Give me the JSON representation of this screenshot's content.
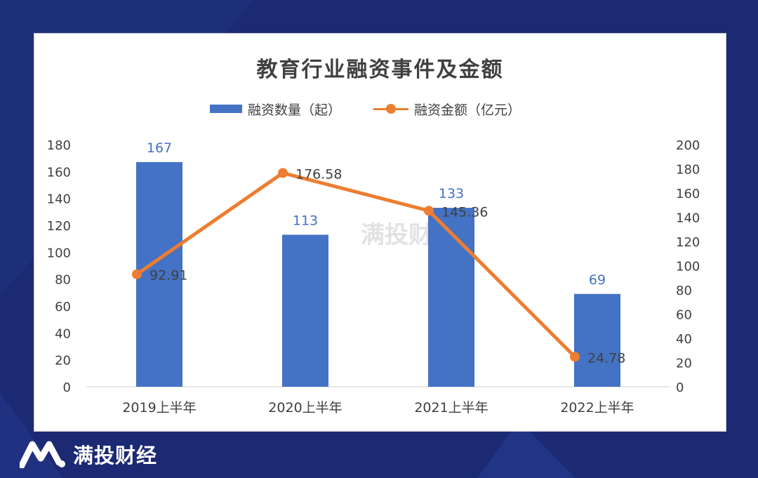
{
  "brand": {
    "name": "满投财经",
    "watermark": "满投财经"
  },
  "colors": {
    "background": "#1c2a73",
    "bar": "#4472c4",
    "line": "#ed7d31",
    "bar_label": "#4472c4",
    "text": "#404040"
  },
  "icons": {
    "logo": "m-mountain-logo"
  },
  "chart_data": {
    "type": "bar",
    "title": "教育行业融资事件及金额",
    "categories": [
      "2019上半年",
      "2020上半年",
      "2021上半年",
      "2022上半年"
    ],
    "series": [
      {
        "name": "融资数量（起）",
        "type": "bar",
        "axis": "left",
        "values": [
          167,
          113,
          133,
          69
        ],
        "labels": [
          "167",
          "113",
          "133",
          "69"
        ]
      },
      {
        "name": "融资金额（亿元）",
        "type": "line",
        "axis": "right",
        "values": [
          92.91,
          176.58,
          145.36,
          24.78
        ],
        "labels": [
          "92.91",
          "176.58",
          "145.36",
          "24.78"
        ]
      }
    ],
    "y_left": {
      "ylim": [
        0,
        180
      ],
      "ticks": [
        "0",
        "20",
        "40",
        "60",
        "80",
        "100",
        "120",
        "140",
        "160",
        "180"
      ]
    },
    "y_right": {
      "ylim": [
        0,
        200
      ],
      "ticks": [
        "0",
        "20",
        "40",
        "60",
        "80",
        "100",
        "120",
        "140",
        "160",
        "180",
        "200"
      ]
    },
    "legend": "top-center",
    "grid": false
  }
}
